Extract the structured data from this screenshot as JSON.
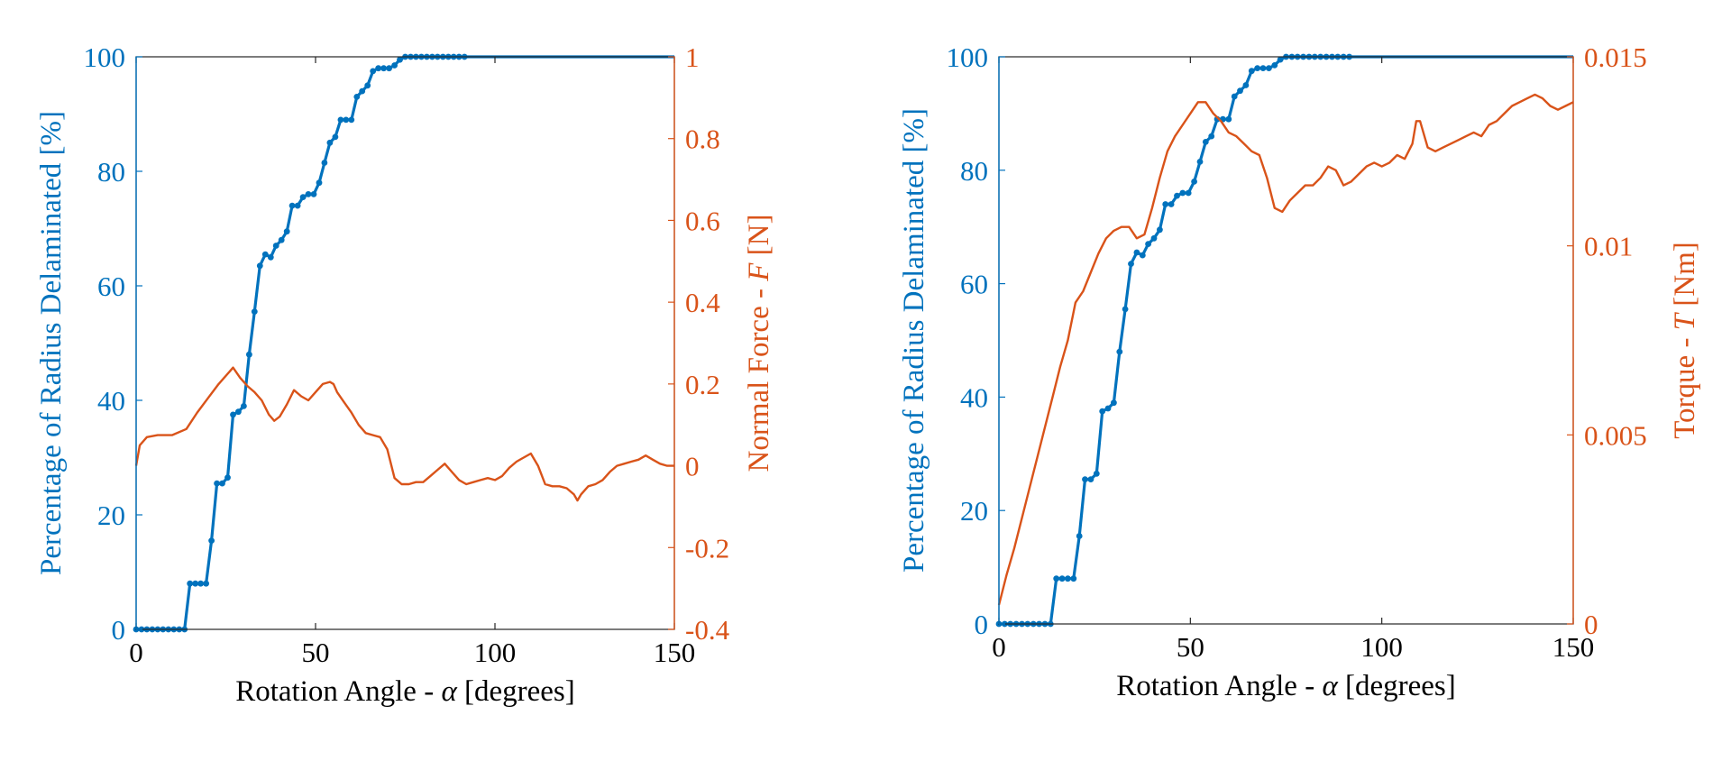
{
  "figure": {
    "colors": {
      "left": "#0072BD",
      "right": "#D95319",
      "axis": "#262626"
    },
    "panels": [
      {
        "id": "force",
        "xlabel": {
          "prefix": "Rotation Angle - ",
          "symbol": "α",
          "suffix": " [degrees]"
        },
        "ylabel_left": "Percentage of Radius Delaminated [%]",
        "ylabel_right": {
          "prefix": "Normal Force - ",
          "symbol": "F",
          "suffix": " [N]"
        },
        "xlim": [
          0,
          150
        ],
        "ylim_left": [
          0,
          100
        ],
        "ylim_right": [
          -0.4,
          1
        ],
        "xticks": [
          0,
          50,
          100,
          150
        ],
        "xtick_labels": [
          "0",
          "50",
          "100",
          "150"
        ],
        "yticks_left": [
          0,
          20,
          40,
          60,
          80,
          100
        ],
        "ytick_labels_left": [
          "0",
          "20",
          "40",
          "60",
          "80",
          "100"
        ],
        "yticks_right": [
          -0.4,
          -0.2,
          0,
          0.2,
          0.4,
          0.6,
          0.8,
          1
        ],
        "ytick_labels_right": [
          "-0.4",
          "-0.2",
          "0",
          "0.2",
          "0.4",
          "0.6",
          "0.8",
          "1"
        ]
      },
      {
        "id": "torque",
        "xlabel": {
          "prefix": "Rotation Angle - ",
          "symbol": "α",
          "suffix": " [degrees]"
        },
        "ylabel_left": "Percentage of Radius Delaminated [%]",
        "ylabel_right": {
          "prefix": "Torque - ",
          "symbol": "T",
          "suffix": " [Nm]"
        },
        "xlim": [
          0,
          150
        ],
        "ylim_left": [
          0,
          100
        ],
        "ylim_right": [
          0,
          0.015
        ],
        "xticks": [
          0,
          50,
          100,
          150
        ],
        "xtick_labels": [
          "0",
          "50",
          "100",
          "150"
        ],
        "yticks_left": [
          0,
          20,
          40,
          60,
          80,
          100
        ],
        "ytick_labels_left": [
          "0",
          "20",
          "40",
          "60",
          "80",
          "100"
        ],
        "yticks_right": [
          0,
          0.005,
          0.01,
          0.015
        ],
        "ytick_labels_right": [
          "0",
          "0.005",
          "0.01",
          "0.015"
        ]
      }
    ]
  },
  "chart_data": [
    {
      "type": "line",
      "title": "",
      "xlabel": "Rotation Angle - α [degrees]",
      "ylabel": "Percentage of Radius Delaminated [%]",
      "ylabel_right": "Normal Force - F [N]",
      "xlim": [
        0,
        150
      ],
      "ylim": [
        0,
        100
      ],
      "ylim_right": [
        -0.4,
        1
      ],
      "grid": false,
      "series": [
        {
          "name": "Percentage of Radius Delaminated",
          "axis": "left",
          "markers": true,
          "x": [
            0,
            1.5,
            3,
            4.5,
            6,
            7.5,
            9,
            10.5,
            12,
            13.5,
            15,
            16.5,
            18,
            19.5,
            21,
            22.5,
            24,
            25.5,
            27,
            28.5,
            30,
            31.5,
            33,
            34.5,
            36,
            37.5,
            39,
            40.5,
            42,
            43.5,
            45,
            46.5,
            48,
            49.5,
            51,
            52.5,
            54,
            55.5,
            57,
            58.5,
            60,
            61.5,
            63,
            64.5,
            66,
            67.5,
            69,
            70.5,
            72,
            73.5,
            75,
            76.5,
            78,
            79.5,
            81,
            82.5,
            84,
            85.5,
            87,
            88.5,
            90,
            91.5,
            93,
            94.5,
            96,
            97.5,
            99,
            100.5,
            102,
            103.5,
            105,
            106.5,
            108,
            109.5,
            111,
            112.5,
            114,
            115.5,
            117,
            118.5,
            120,
            121.5,
            123,
            124.5,
            126,
            127.5,
            129,
            130.5,
            132,
            133.5,
            135,
            136.5,
            138,
            139.5,
            141,
            142.5,
            144,
            145.5,
            147,
            148.5,
            150
          ],
          "y": [
            0,
            0,
            0,
            0,
            0,
            0,
            0,
            0,
            0,
            0,
            8,
            8,
            8,
            8,
            15.5,
            25.5,
            25.5,
            26.5,
            37.5,
            38,
            39,
            48,
            55.5,
            63.5,
            65.5,
            65,
            67,
            68,
            69.5,
            74,
            74,
            75.5,
            76,
            76,
            78,
            81.5,
            85,
            86,
            89,
            89,
            89,
            93,
            94,
            95,
            97.5,
            98,
            98,
            98,
            98.5,
            99.5,
            100,
            100,
            100,
            100,
            100,
            100,
            100,
            100,
            100,
            100,
            100,
            100,
            100,
            100,
            100,
            100,
            100,
            100,
            100,
            100,
            100,
            100,
            100,
            100,
            100,
            100,
            100,
            100,
            100,
            100,
            100,
            100,
            100,
            100,
            100,
            100,
            100,
            100,
            100,
            100,
            100,
            100,
            100,
            100,
            100,
            100,
            100,
            100,
            100,
            100,
            100
          ]
        },
        {
          "name": "Normal Force",
          "axis": "right",
          "markers": false,
          "x": [
            0,
            1,
            3,
            6,
            10,
            14,
            17,
            20,
            23,
            26,
            27,
            29,
            31,
            33,
            35,
            37,
            38.5,
            40,
            42,
            44,
            46,
            48,
            50,
            52,
            54,
            55,
            56,
            58,
            60,
            62,
            64,
            66,
            68,
            70,
            72,
            74,
            76,
            78,
            80,
            82,
            84,
            86,
            88,
            90,
            92,
            94,
            96,
            98,
            100,
            102,
            104,
            106,
            108,
            110,
            112,
            114,
            116,
            118,
            120,
            122,
            123,
            124,
            126,
            128,
            130,
            132,
            134,
            136,
            138,
            140,
            142,
            144,
            146,
            148,
            150
          ],
          "y": [
            0,
            0.05,
            0.07,
            0.075,
            0.075,
            0.09,
            0.13,
            0.165,
            0.2,
            0.23,
            0.24,
            0.215,
            0.195,
            0.18,
            0.16,
            0.125,
            0.11,
            0.12,
            0.15,
            0.185,
            0.17,
            0.16,
            0.18,
            0.2,
            0.205,
            0.2,
            0.18,
            0.155,
            0.13,
            0.1,
            0.08,
            0.075,
            0.07,
            0.04,
            -0.03,
            -0.045,
            -0.045,
            -0.04,
            -0.04,
            -0.025,
            -0.01,
            0.005,
            -0.015,
            -0.035,
            -0.045,
            -0.04,
            -0.035,
            -0.03,
            -0.035,
            -0.025,
            -0.005,
            0.01,
            0.02,
            0.03,
            0,
            -0.045,
            -0.05,
            -0.05,
            -0.055,
            -0.07,
            -0.085,
            -0.07,
            -0.05,
            -0.045,
            -0.035,
            -0.015,
            0,
            0.005,
            0.01,
            0.015,
            0.025,
            0.015,
            0.005,
            0,
            0
          ]
        }
      ]
    },
    {
      "type": "line",
      "title": "",
      "xlabel": "Rotation Angle - α [degrees]",
      "ylabel": "Percentage of Radius Delaminated [%]",
      "ylabel_right": "Torque - T [Nm]",
      "xlim": [
        0,
        150
      ],
      "ylim": [
        0,
        100
      ],
      "ylim_right": [
        0,
        0.015
      ],
      "grid": false,
      "series": [
        {
          "name": "Percentage of Radius Delaminated",
          "axis": "left",
          "markers": true,
          "x": [
            0,
            1.5,
            3,
            4.5,
            6,
            7.5,
            9,
            10.5,
            12,
            13.5,
            15,
            16.5,
            18,
            19.5,
            21,
            22.5,
            24,
            25.5,
            27,
            28.5,
            30,
            31.5,
            33,
            34.5,
            36,
            37.5,
            39,
            40.5,
            42,
            43.5,
            45,
            46.5,
            48,
            49.5,
            51,
            52.5,
            54,
            55.5,
            57,
            58.5,
            60,
            61.5,
            63,
            64.5,
            66,
            67.5,
            69,
            70.5,
            72,
            73.5,
            75,
            76.5,
            78,
            79.5,
            81,
            82.5,
            84,
            85.5,
            87,
            88.5,
            90,
            91.5,
            93,
            94.5,
            96,
            97.5,
            99,
            100.5,
            102,
            103.5,
            105,
            106.5,
            108,
            109.5,
            111,
            112.5,
            114,
            115.5,
            117,
            118.5,
            120,
            121.5,
            123,
            124.5,
            126,
            127.5,
            129,
            130.5,
            132,
            133.5,
            135,
            136.5,
            138,
            139.5,
            141,
            142.5,
            144,
            145.5,
            147,
            148.5,
            150
          ],
          "y": [
            0,
            0,
            0,
            0,
            0,
            0,
            0,
            0,
            0,
            0,
            8,
            8,
            8,
            8,
            15.5,
            25.5,
            25.5,
            26.5,
            37.5,
            38,
            39,
            48,
            55.5,
            63.5,
            65.5,
            65,
            67,
            68,
            69.5,
            74,
            74,
            75.5,
            76,
            76,
            78,
            81.5,
            85,
            86,
            89,
            89,
            89,
            93,
            94,
            95,
            97.5,
            98,
            98,
            98,
            98.5,
            99.5,
            100,
            100,
            100,
            100,
            100,
            100,
            100,
            100,
            100,
            100,
            100,
            100,
            100,
            100,
            100,
            100,
            100,
            100,
            100,
            100,
            100,
            100,
            100,
            100,
            100,
            100,
            100,
            100,
            100,
            100,
            100,
            100,
            100,
            100,
            100,
            100,
            100,
            100,
            100,
            100,
            100,
            100,
            100,
            100,
            100,
            100,
            100,
            100,
            100,
            100,
            100
          ]
        },
        {
          "name": "Torque",
          "axis": "right",
          "markers": false,
          "x": [
            0,
            2,
            4,
            6,
            8,
            10,
            12,
            14,
            16,
            18,
            20,
            22,
            24,
            26,
            28,
            30,
            32,
            34,
            36,
            38,
            40,
            42,
            44,
            46,
            48,
            50,
            52,
            54,
            56,
            58,
            60,
            62,
            64,
            66,
            68,
            70,
            72,
            74,
            76,
            78,
            80,
            82,
            84,
            86,
            88,
            90,
            92,
            94,
            96,
            98,
            100,
            102,
            104,
            106,
            108,
            109,
            110,
            112,
            114,
            116,
            118,
            120,
            122,
            124,
            126,
            128,
            130,
            132,
            134,
            136,
            138,
            140,
            142,
            144,
            146,
            148,
            150
          ],
          "y": [
            0.0005,
            0.0013,
            0.002,
            0.0028,
            0.0036,
            0.0044,
            0.0052,
            0.006,
            0.0068,
            0.0075,
            0.0085,
            0.0088,
            0.0093,
            0.0098,
            0.0102,
            0.0104,
            0.0105,
            0.0105,
            0.0102,
            0.0103,
            0.011,
            0.0118,
            0.0125,
            0.0129,
            0.0132,
            0.0135,
            0.0138,
            0.0138,
            0.0135,
            0.0133,
            0.013,
            0.0129,
            0.0127,
            0.0125,
            0.0124,
            0.0118,
            0.011,
            0.0109,
            0.0112,
            0.0114,
            0.0116,
            0.0116,
            0.0118,
            0.0121,
            0.012,
            0.0116,
            0.0117,
            0.0119,
            0.0121,
            0.0122,
            0.0121,
            0.0122,
            0.0124,
            0.0123,
            0.0127,
            0.0133,
            0.0133,
            0.0126,
            0.0125,
            0.0126,
            0.0127,
            0.0128,
            0.0129,
            0.013,
            0.0129,
            0.0132,
            0.0133,
            0.0135,
            0.0137,
            0.0138,
            0.0139,
            0.014,
            0.0139,
            0.0137,
            0.0136,
            0.0137,
            0.0138
          ]
        }
      ]
    }
  ]
}
